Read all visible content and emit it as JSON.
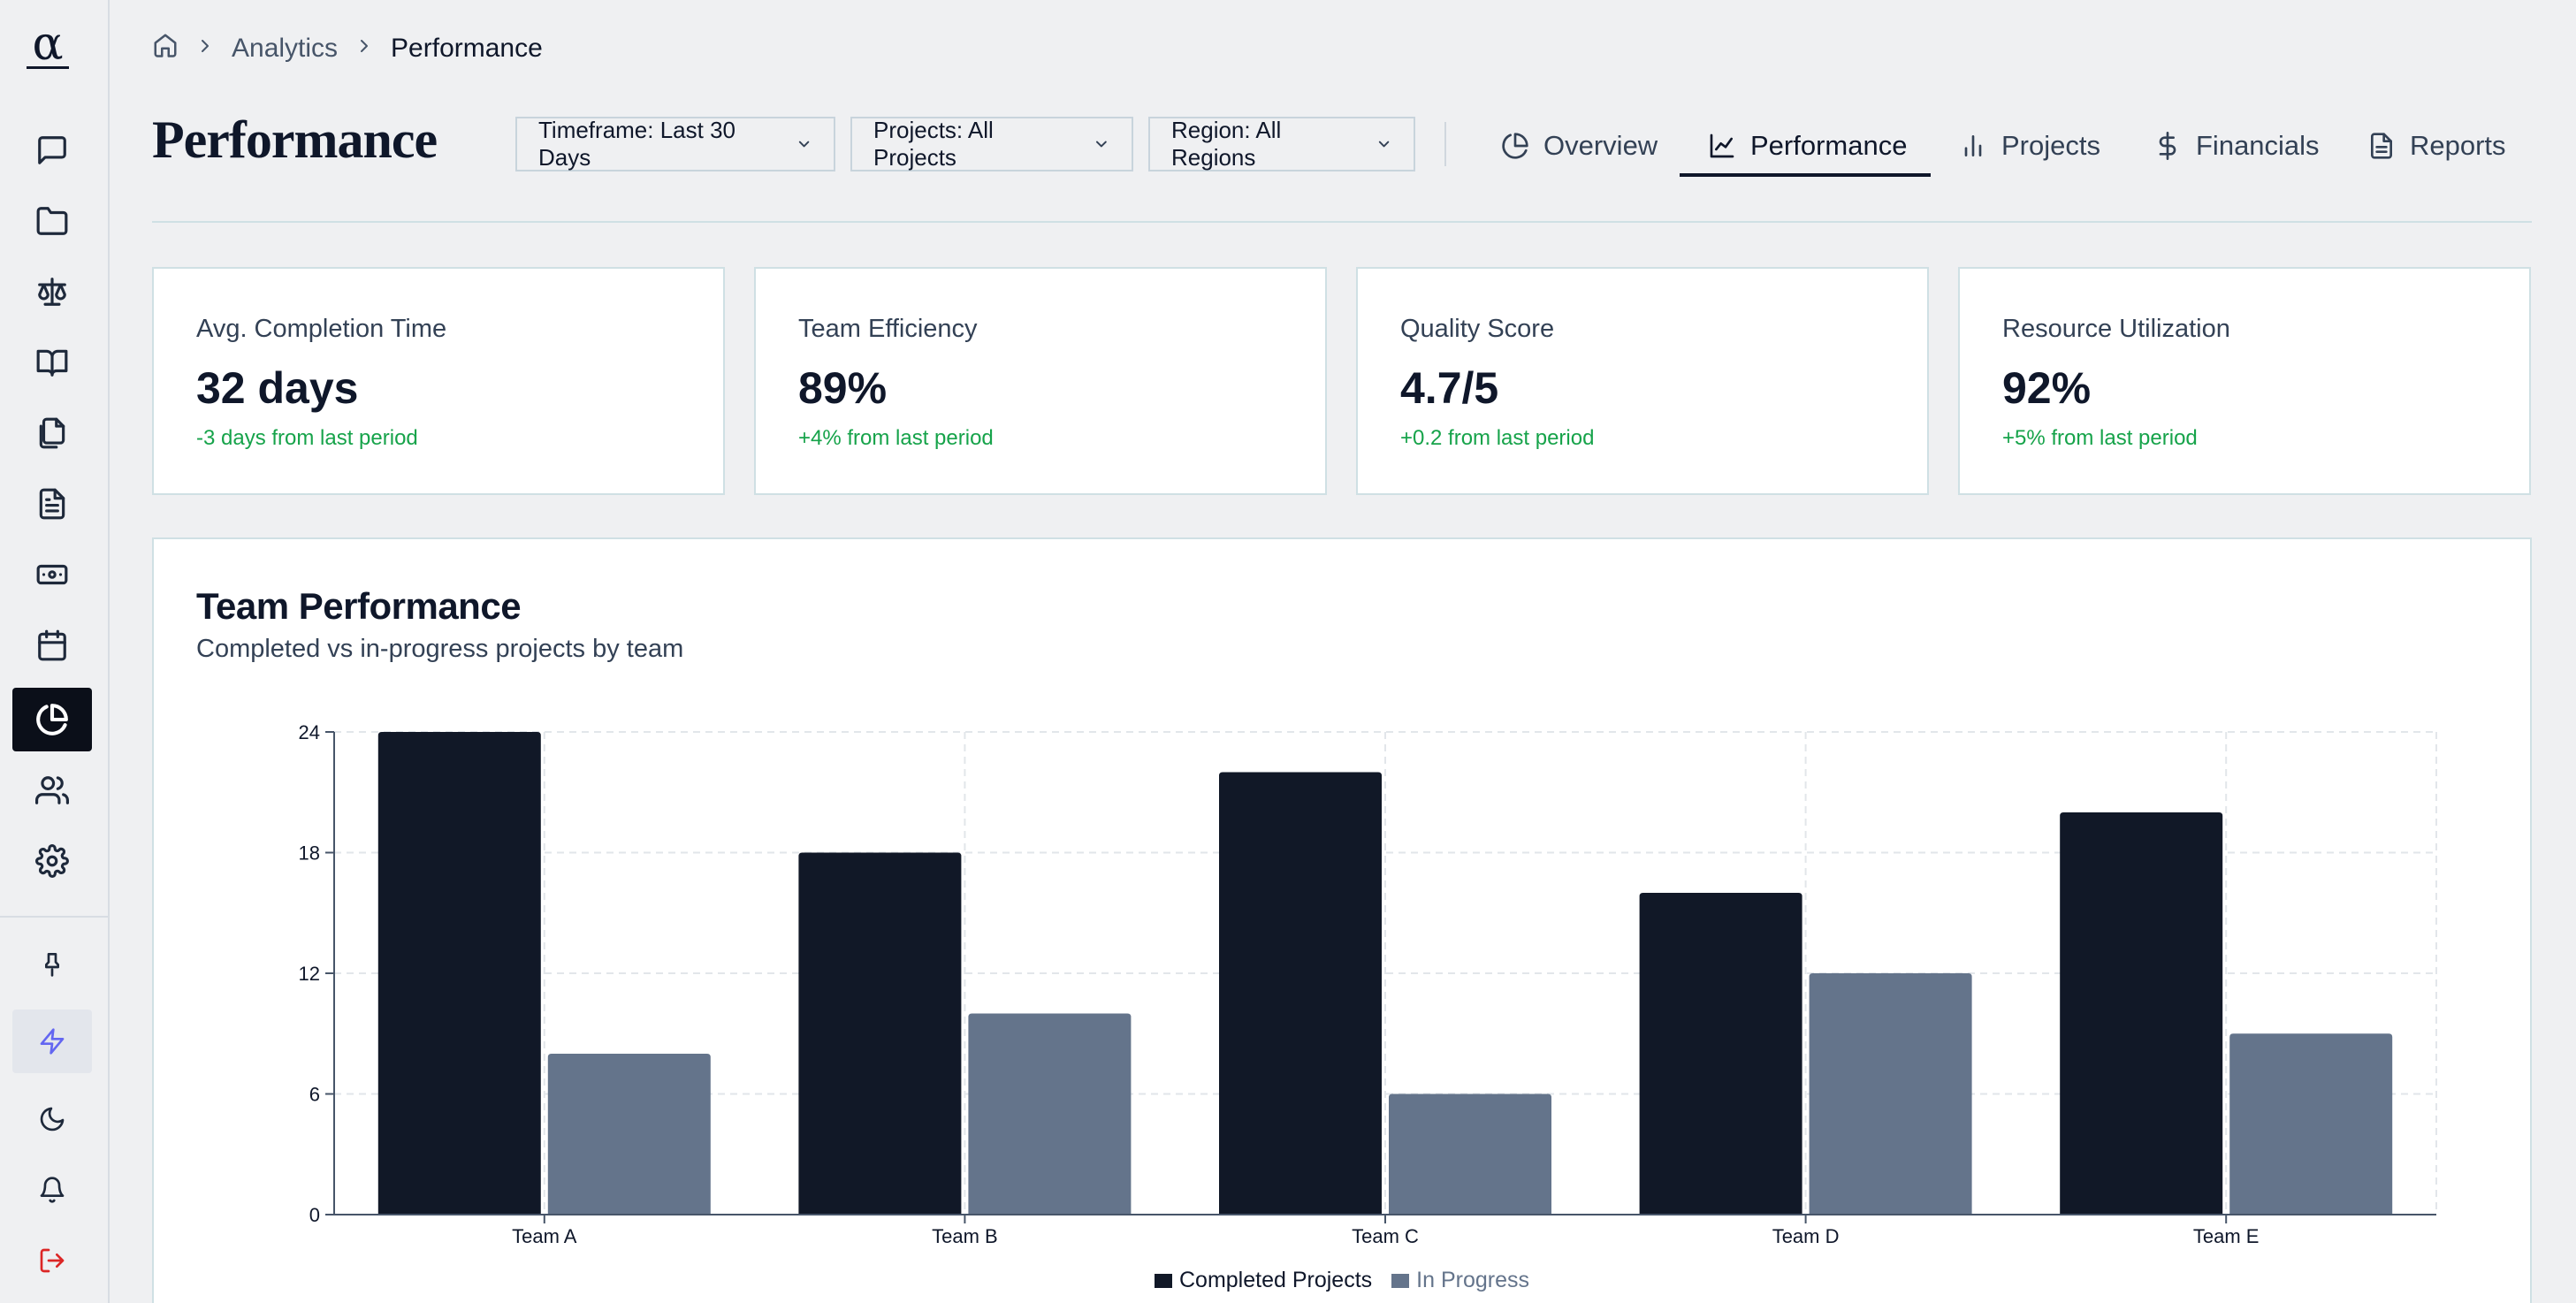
{
  "sidebar": {
    "logo_symbol": "α",
    "items": [
      {
        "icon": "message-square-icon"
      },
      {
        "icon": "folder-icon"
      },
      {
        "icon": "scale-icon"
      },
      {
        "icon": "book-open-icon"
      },
      {
        "icon": "files-icon"
      },
      {
        "icon": "file-text-icon"
      },
      {
        "icon": "banknote-icon"
      },
      {
        "icon": "calendar-icon"
      },
      {
        "icon": "pie-chart-icon",
        "active": true
      },
      {
        "icon": "users-icon"
      },
      {
        "icon": "settings-icon"
      },
      {
        "icon": "pin-icon"
      },
      {
        "icon": "zap-icon"
      },
      {
        "icon": "moon-icon"
      },
      {
        "icon": "bell-icon"
      },
      {
        "icon": "log-out-icon"
      }
    ]
  },
  "breadcrumb": {
    "parent": "Analytics",
    "current": "Performance"
  },
  "page": {
    "title": "Performance"
  },
  "filters": {
    "timeframe": "Timeframe: Last 30 Days",
    "projects": "Projects: All Projects",
    "region": "Region: All Regions"
  },
  "tabs": [
    {
      "label": "Overview",
      "icon": "pie-chart-icon"
    },
    {
      "label": "Performance",
      "icon": "line-chart-icon",
      "active": true
    },
    {
      "label": "Projects",
      "icon": "bar-chart-icon"
    },
    {
      "label": "Financials",
      "icon": "dollar-sign-icon"
    },
    {
      "label": "Reports",
      "icon": "file-text-icon"
    }
  ],
  "kpis": [
    {
      "label": "Avg. Completion Time",
      "value": "32 days",
      "delta": "-3 days from last period"
    },
    {
      "label": "Team Efficiency",
      "value": "89%",
      "delta": "+4% from last period"
    },
    {
      "label": "Quality Score",
      "value": "4.7/5",
      "delta": "+0.2 from last period"
    },
    {
      "label": "Resource Utilization",
      "value": "92%",
      "delta": "+5% from last period"
    }
  ],
  "panel": {
    "title": "Team Performance",
    "subtitle": "Completed vs in-progress projects by team"
  },
  "colors": {
    "completed": "#111827",
    "in_progress": "#64748b",
    "positive": "#16a34a"
  },
  "chart_data": {
    "type": "bar",
    "categories": [
      "Team A",
      "Team B",
      "Team C",
      "Team D",
      "Team E"
    ],
    "series": [
      {
        "name": "Completed Projects",
        "values": [
          24,
          18,
          22,
          16,
          20
        ]
      },
      {
        "name": "In Progress",
        "values": [
          8,
          10,
          6,
          12,
          9
        ]
      }
    ],
    "yticks": [
      0,
      6,
      12,
      18,
      24
    ],
    "ylim": [
      0,
      24
    ],
    "grid": true,
    "legend": "bottom-center"
  }
}
